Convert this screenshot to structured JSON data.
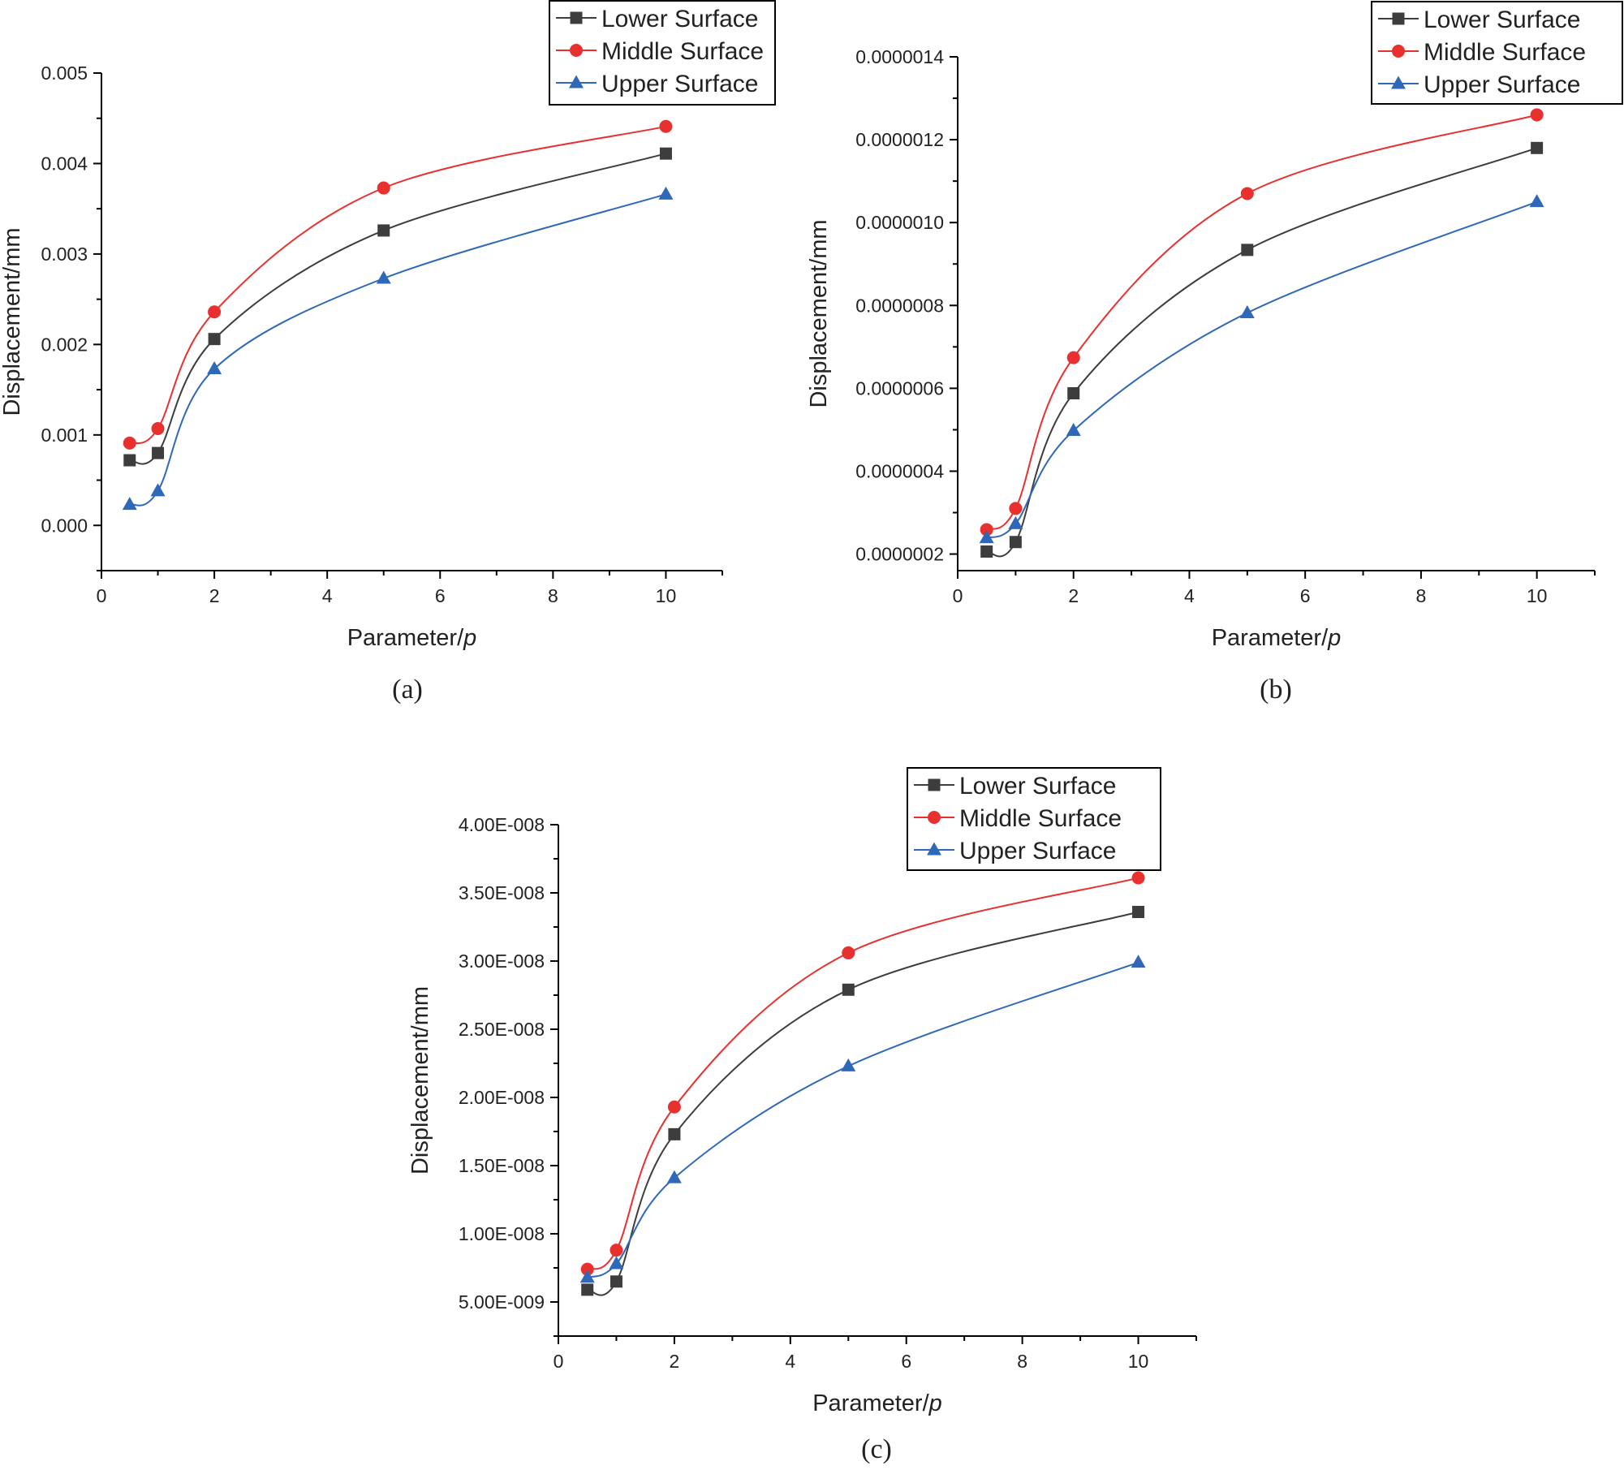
{
  "chart_data": [
    {
      "type": "line",
      "panel_label": "(a)",
      "xlabel": "Parameter/",
      "xlabel_italic": "p",
      "ylabel": "Displacement/mm",
      "xlim": [
        0,
        11
      ],
      "ylim": [
        -0.0005,
        0.005
      ],
      "x_ticks": [
        0,
        2,
        4,
        6,
        8,
        10
      ],
      "x_tick_labels": [
        "0",
        "2",
        "4",
        "6",
        "8",
        "10"
      ],
      "y_ticks": [
        0,
        0.001,
        0.002,
        0.003,
        0.004,
        0.005
      ],
      "y_tick_labels": [
        "0.000",
        "0.001",
        "0.002",
        "0.003",
        "0.004",
        "0.005"
      ],
      "legend_position": "top-right",
      "x": [
        0.5,
        1,
        2,
        5,
        10
      ],
      "series": [
        {
          "name": "Lower Surface",
          "color": "#3d3d3d",
          "marker": "square",
          "values": [
            0.00072,
            0.0008,
            0.00206,
            0.00326,
            0.00411
          ]
        },
        {
          "name": "Middle Surface",
          "color": "#e8302e",
          "marker": "circle",
          "values": [
            0.00091,
            0.00107,
            0.00236,
            0.00373,
            0.00441
          ]
        },
        {
          "name": "Upper Surface",
          "color": "#2f68b9",
          "marker": "triangle",
          "values": [
            0.00023,
            0.00038,
            0.00173,
            0.00273,
            0.00366
          ]
        }
      ]
    },
    {
      "type": "line",
      "panel_label": "(b)",
      "xlabel": "Parameter/",
      "xlabel_italic": "p",
      "ylabel": "Displacement/mm",
      "xlim": [
        0,
        11
      ],
      "ylim": [
        1.6e-07,
        1.4e-06
      ],
      "x_ticks": [
        0,
        2,
        4,
        6,
        8,
        10
      ],
      "x_tick_labels": [
        "0",
        "2",
        "4",
        "6",
        "8",
        "10"
      ],
      "y_ticks": [
        2e-07,
        4e-07,
        6e-07,
        8e-07,
        1e-06,
        1.2e-06,
        1.4e-06
      ],
      "y_tick_labels": [
        "0.0000002",
        "0.0000004",
        "0.0000006",
        "0.0000008",
        "0.0000010",
        "0.0000012",
        "0.0000014"
      ],
      "legend_position": "top-right",
      "x": [
        0.5,
        1,
        2,
        5,
        10
      ],
      "series": [
        {
          "name": "Lower Surface",
          "color": "#3d3d3d",
          "marker": "square",
          "values": [
            2.06e-07,
            2.29e-07,
            5.88e-07,
            9.34e-07,
            1.18e-06
          ]
        },
        {
          "name": "Middle Surface",
          "color": "#e8302e",
          "marker": "circle",
          "values": [
            2.59e-07,
            3.1e-07,
            6.74e-07,
            1.07e-06,
            1.26e-06
          ]
        },
        {
          "name": "Upper Surface",
          "color": "#2f68b9",
          "marker": "triangle",
          "values": [
            2.39e-07,
            2.73e-07,
            4.98e-07,
            7.82e-07,
            1.05e-06
          ]
        }
      ]
    },
    {
      "type": "line",
      "panel_label": "(c)",
      "xlabel": "Parameter/",
      "xlabel_italic": "p",
      "ylabel": "Displacement/mm",
      "xlim": [
        0,
        11
      ],
      "ylim": [
        2.5e-09,
        4e-08
      ],
      "x_ticks": [
        0,
        2,
        4,
        6,
        8,
        10
      ],
      "x_tick_labels": [
        "0",
        "2",
        "4",
        "6",
        "8",
        "10"
      ],
      "y_ticks": [
        5e-09,
        1e-08,
        1.5e-08,
        2e-08,
        2.5e-08,
        3e-08,
        3.5e-08,
        4e-08
      ],
      "y_tick_labels": [
        "5.00E-009",
        "1.00E-008",
        "1.50E-008",
        "2.00E-008",
        "2.50E-008",
        "3.00E-008",
        "3.50E-008",
        "4.00E-008"
      ],
      "legend_position": "top-right",
      "x": [
        0.5,
        1,
        2,
        5,
        10
      ],
      "series": [
        {
          "name": "Lower Surface",
          "color": "#3d3d3d",
          "marker": "square",
          "values": [
            5.9e-09,
            6.5e-09,
            1.73e-08,
            2.79e-08,
            3.36e-08
          ]
        },
        {
          "name": "Middle Surface",
          "color": "#e8302e",
          "marker": "circle",
          "values": [
            7.4e-09,
            8.8e-09,
            1.93e-08,
            3.06e-08,
            3.61e-08
          ]
        },
        {
          "name": "Upper Surface",
          "color": "#2f68b9",
          "marker": "triangle",
          "values": [
            6.8e-09,
            7.8e-09,
            1.41e-08,
            2.23e-08,
            2.99e-08
          ]
        }
      ]
    }
  ]
}
